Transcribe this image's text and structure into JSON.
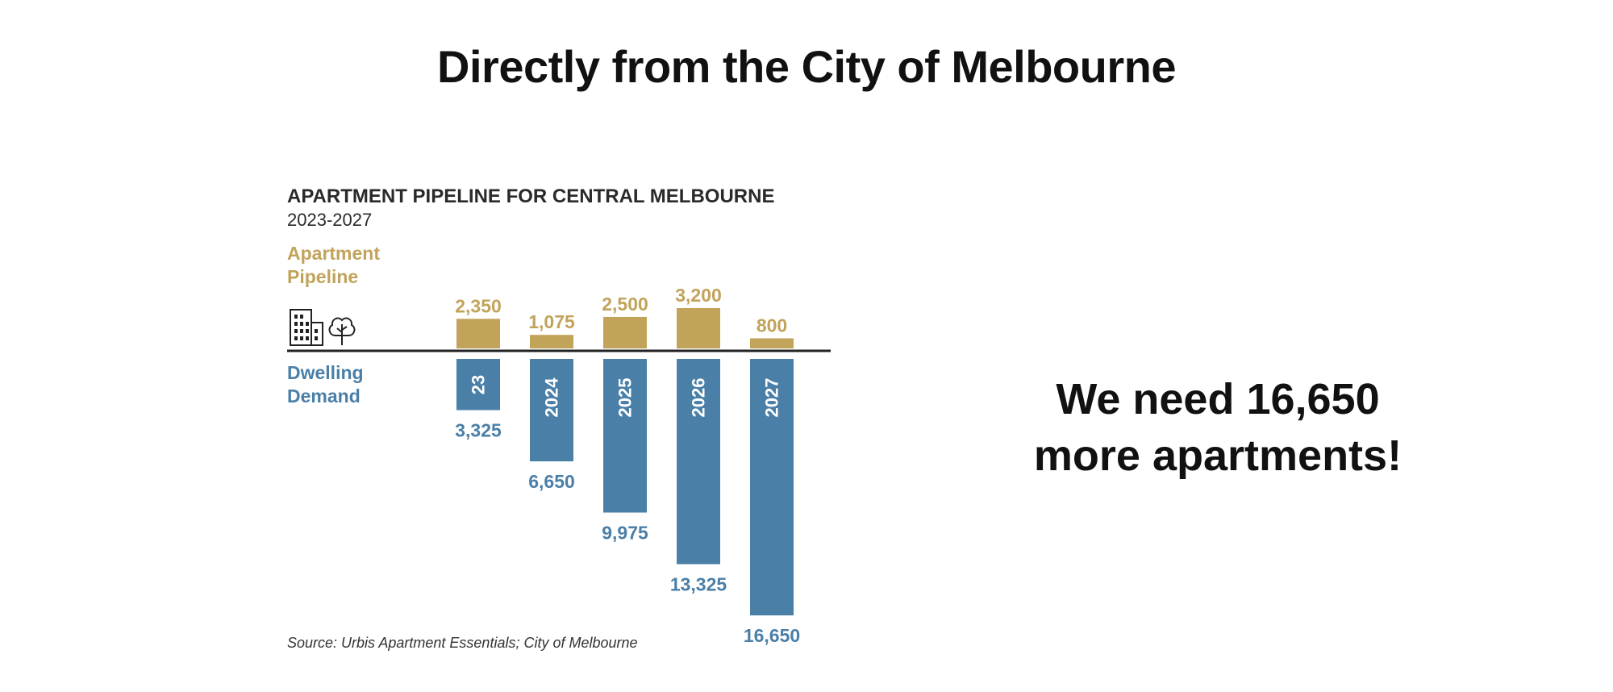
{
  "slide": {
    "title": "Directly from the City of Melbourne",
    "callout_line1": "We need 16,650",
    "callout_line2": "more apartments!"
  },
  "colors": {
    "pipeline": "#c1a35a",
    "demand": "#4a7fa8",
    "axis": "#222222"
  },
  "icons": [
    "building-icon",
    "tree-icon"
  ],
  "chart_data": {
    "type": "bar",
    "title": "APARTMENT PIPELINE FOR CENTRAL MELBOURNE",
    "subtitle": "2023-2027",
    "categories": [
      "23",
      "2024",
      "2025",
      "2026",
      "2027"
    ],
    "series": [
      {
        "name": "Apartment Pipeline",
        "direction": "up",
        "values": [
          2350,
          1075,
          2500,
          3200,
          800
        ],
        "labels": [
          "2,350",
          "1,075",
          "2,500",
          "3,200",
          "800"
        ]
      },
      {
        "name": "Dwelling Demand",
        "direction": "down",
        "values": [
          3325,
          6650,
          9975,
          13325,
          16650
        ],
        "labels": [
          "3,325",
          "6,650",
          "9,975",
          "13,325",
          "16,650"
        ]
      }
    ],
    "source": "Source: Urbis Apartment Essentials; City of Melbourne",
    "grid": false,
    "legend": "left-side labels"
  }
}
